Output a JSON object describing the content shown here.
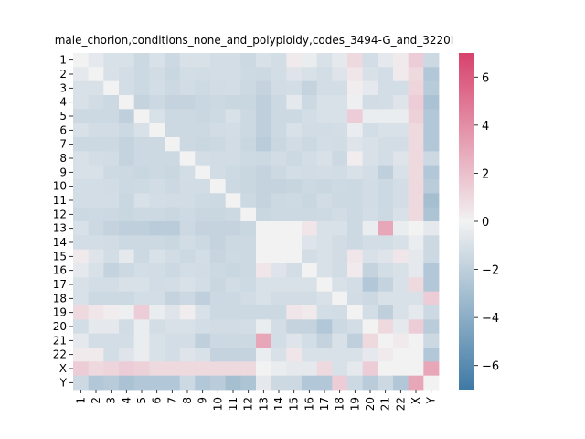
{
  "chart_data": {
    "type": "heatmap",
    "title": "male_chorion,conditions_none_and_polyploidy,codes_3494-G_and_3220I",
    "xlabel": "",
    "ylabel": "",
    "categories": [
      "1",
      "2",
      "3",
      "4",
      "5",
      "6",
      "7",
      "8",
      "9",
      "10",
      "11",
      "12",
      "13",
      "14",
      "15",
      "16",
      "17",
      "18",
      "19",
      "20",
      "21",
      "22",
      "X",
      "Y"
    ],
    "colorbar": {
      "ticks": [
        6,
        4,
        2,
        0,
        -2,
        -4,
        -6
      ],
      "range": [
        -7,
        7
      ],
      "colormap": "diverging",
      "colors": {
        "low": "#3f7aa5",
        "mid": "#f2f2f2",
        "high": "#d8426d"
      }
    },
    "values": [
      [
        0.0,
        -0.5,
        -1.0,
        -1.0,
        -1.5,
        -1.0,
        -1.5,
        -1.0,
        -1.0,
        -1.2,
        -1.2,
        -1.5,
        -1.0,
        -1.2,
        0.3,
        -0.3,
        -1.0,
        -0.5,
        1.0,
        -1.2,
        -0.5,
        0.3,
        1.5,
        -1.5
      ],
      [
        -0.5,
        0.0,
        -1.0,
        -1.2,
        -1.5,
        -1.3,
        -1.6,
        -1.2,
        -1.3,
        -1.2,
        -1.2,
        -1.4,
        -1.5,
        -1.2,
        -0.8,
        -1.0,
        -1.2,
        -0.8,
        0.5,
        -1.0,
        -1.2,
        0.3,
        1.0,
        -2.5
      ],
      [
        -1.0,
        -1.0,
        0.0,
        -1.2,
        -1.5,
        -1.2,
        -1.5,
        -1.3,
        -1.4,
        -1.3,
        -1.2,
        -1.5,
        -1.8,
        -1.3,
        -1.2,
        -1.8,
        -1.2,
        -1.2,
        0.2,
        -0.5,
        -1.2,
        -1.2,
        1.2,
        -2.3
      ],
      [
        -1.0,
        -1.3,
        -1.5,
        0.0,
        -1.8,
        -1.5,
        -1.8,
        -1.8,
        -1.6,
        -1.5,
        -1.6,
        -1.6,
        -2.0,
        -1.5,
        -0.5,
        -1.5,
        -1.0,
        -1.0,
        -0.2,
        -1.3,
        -1.2,
        -0.8,
        1.5,
        -2.8
      ],
      [
        -1.5,
        -1.5,
        -1.5,
        -2.0,
        0.0,
        -1.0,
        -1.5,
        -1.5,
        -1.6,
        -1.4,
        -1.0,
        -1.5,
        -2.0,
        -1.5,
        -1.5,
        -1.2,
        -1.0,
        -1.0,
        1.5,
        -0.3,
        -0.3,
        -0.3,
        1.3,
        -2.5
      ],
      [
        -1.0,
        -1.3,
        -1.3,
        -1.5,
        -1.0,
        0.0,
        -1.5,
        -1.5,
        -1.5,
        -1.3,
        -1.2,
        -1.5,
        -2.0,
        -1.5,
        -1.0,
        -1.3,
        -1.3,
        -1.2,
        -0.3,
        -1.2,
        -1.0,
        -1.0,
        1.0,
        -2.5
      ],
      [
        -1.5,
        -1.5,
        -1.5,
        -1.8,
        -1.5,
        -1.5,
        0.0,
        -1.5,
        -1.6,
        -1.5,
        -1.3,
        -1.6,
        -2.2,
        -1.6,
        -1.3,
        -1.5,
        -1.2,
        -1.3,
        -0.8,
        -1.0,
        -1.2,
        -1.2,
        1.0,
        -2.5
      ],
      [
        -1.0,
        -1.2,
        -1.3,
        -1.8,
        -1.5,
        -1.5,
        -1.5,
        0.0,
        -1.2,
        -1.3,
        -1.3,
        -1.4,
        -1.5,
        -1.3,
        -1.5,
        -1.2,
        -1.0,
        -1.5,
        0.2,
        -1.0,
        -1.2,
        -0.8,
        1.0,
        -1.5
      ],
      [
        -1.0,
        -1.0,
        -1.4,
        -1.5,
        -1.6,
        -1.5,
        -1.6,
        -1.2,
        0.0,
        -1.3,
        -1.4,
        -1.6,
        -1.8,
        -1.5,
        -1.2,
        -1.3,
        -1.2,
        -1.3,
        -1.0,
        -1.2,
        -2.0,
        -1.0,
        1.0,
        -2.5
      ],
      [
        -1.2,
        -1.2,
        -1.3,
        -1.5,
        -1.4,
        -1.3,
        -1.5,
        -1.3,
        -1.3,
        0.0,
        -1.5,
        -1.6,
        -1.8,
        -1.8,
        -1.7,
        -1.5,
        -1.6,
        -1.4,
        -1.5,
        -1.3,
        -1.5,
        -1.2,
        1.0,
        -2.2
      ],
      [
        -1.2,
        -1.2,
        -1.2,
        -1.6,
        -1.0,
        -1.2,
        -1.3,
        -1.3,
        -1.4,
        -1.5,
        0.0,
        -1.5,
        -1.8,
        -1.5,
        -1.4,
        -1.6,
        -1.3,
        -1.5,
        -1.5,
        -1.3,
        -1.5,
        -1.2,
        1.0,
        -3.0
      ],
      [
        -1.5,
        -1.4,
        -1.5,
        -1.6,
        -1.5,
        -1.5,
        -1.6,
        -1.4,
        -1.6,
        -1.6,
        -1.5,
        0.0,
        -1.6,
        -1.5,
        -1.5,
        -1.5,
        -1.4,
        -1.3,
        -1.5,
        -1.2,
        -1.5,
        -1.0,
        1.0,
        -2.7
      ],
      [
        -1.0,
        -1.5,
        -1.8,
        -2.0,
        -2.0,
        -2.2,
        -2.2,
        -1.5,
        -1.8,
        -1.8,
        -1.8,
        -1.6,
        0.0,
        0.0,
        0.0,
        0.5,
        -1.0,
        -1.0,
        -1.5,
        -0.3,
        3.0,
        -0.3,
        0.0,
        -0.5
      ],
      [
        -1.2,
        -1.2,
        -1.3,
        -1.5,
        -1.5,
        -1.5,
        -1.6,
        -1.3,
        -1.5,
        -1.8,
        -1.5,
        -1.5,
        0.0,
        0.0,
        0.0,
        -0.8,
        -1.0,
        -1.3,
        -1.5,
        -1.2,
        -1.2,
        -1.0,
        -0.3,
        -1.5
      ],
      [
        0.3,
        -0.8,
        -1.2,
        -0.5,
        -1.5,
        -1.0,
        -1.3,
        -1.5,
        -1.2,
        -1.7,
        -1.4,
        -1.5,
        0.0,
        0.0,
        0.0,
        -1.2,
        -1.0,
        -1.3,
        0.5,
        -1.0,
        -0.8,
        0.5,
        -0.5,
        -1.5
      ],
      [
        -0.5,
        -1.0,
        -1.8,
        -1.5,
        -1.2,
        -1.3,
        -1.5,
        -1.2,
        -1.3,
        -1.5,
        -1.6,
        -1.5,
        0.5,
        -0.8,
        -1.2,
        0.0,
        -1.0,
        -1.3,
        0.3,
        -1.8,
        -1.2,
        -1.0,
        -0.5,
        -2.5
      ],
      [
        -1.0,
        -1.2,
        -1.2,
        -1.0,
        -1.0,
        -1.3,
        -1.2,
        -1.0,
        -1.2,
        -1.6,
        -1.3,
        -1.4,
        -1.0,
        -1.0,
        -1.0,
        -1.0,
        0.0,
        -1.0,
        -1.2,
        -2.5,
        -1.8,
        -1.0,
        1.0,
        -2.5
      ],
      [
        -1.0,
        -1.5,
        -1.5,
        -1.5,
        -1.2,
        -1.2,
        -1.8,
        -1.5,
        -2.0,
        -1.5,
        -1.5,
        -1.3,
        -1.0,
        -1.3,
        -1.3,
        -1.3,
        -1.0,
        0.0,
        -1.3,
        -1.5,
        -1.0,
        -1.0,
        -1.0,
        1.5
      ],
      [
        1.0,
        0.5,
        0.2,
        -0.2,
        1.5,
        -0.3,
        -0.8,
        0.2,
        -1.0,
        -1.5,
        -1.5,
        -1.5,
        -1.5,
        -1.5,
        0.5,
        0.3,
        -1.2,
        -1.3,
        0.0,
        -1.2,
        -2.0,
        -1.0,
        -0.5,
        -1.5
      ],
      [
        -1.2,
        -0.5,
        -0.5,
        -1.3,
        -0.3,
        -1.2,
        -1.0,
        -1.0,
        -1.2,
        -1.3,
        -1.3,
        -1.2,
        -0.3,
        -1.2,
        -1.8,
        -1.8,
        -2.5,
        -1.5,
        -1.2,
        0.0,
        1.0,
        -0.5,
        1.5,
        -2.2
      ],
      [
        -0.5,
        -1.2,
        -1.2,
        -1.2,
        -0.3,
        -1.0,
        -1.2,
        -1.2,
        -2.0,
        -1.5,
        -1.5,
        -1.5,
        3.0,
        -1.2,
        -0.8,
        -1.2,
        -1.8,
        -1.0,
        -2.0,
        1.0,
        0.0,
        0.3,
        0.0,
        -1.5
      ],
      [
        0.3,
        0.3,
        -1.2,
        -0.8,
        -0.3,
        -1.0,
        -1.2,
        -0.8,
        -1.0,
        -1.8,
        -1.8,
        -1.8,
        -0.3,
        -1.0,
        0.5,
        -1.0,
        -1.0,
        -1.0,
        -1.0,
        -0.5,
        0.3,
        0.0,
        0.0,
        -2.5
      ],
      [
        1.5,
        1.0,
        1.2,
        1.5,
        1.3,
        1.0,
        1.0,
        1.0,
        1.0,
        1.0,
        1.0,
        1.0,
        0.0,
        -0.3,
        -0.5,
        -0.5,
        1.0,
        -1.0,
        -0.5,
        1.5,
        0.0,
        0.0,
        0.0,
        3.0
      ],
      [
        -1.5,
        -2.5,
        -2.3,
        -2.8,
        -2.5,
        -2.5,
        -2.5,
        -1.5,
        -2.5,
        -2.2,
        -3.0,
        -2.7,
        -0.5,
        -1.5,
        -1.5,
        -2.5,
        -2.5,
        1.5,
        -1.5,
        -2.2,
        -1.5,
        -2.5,
        3.0,
        0.0
      ]
    ]
  }
}
